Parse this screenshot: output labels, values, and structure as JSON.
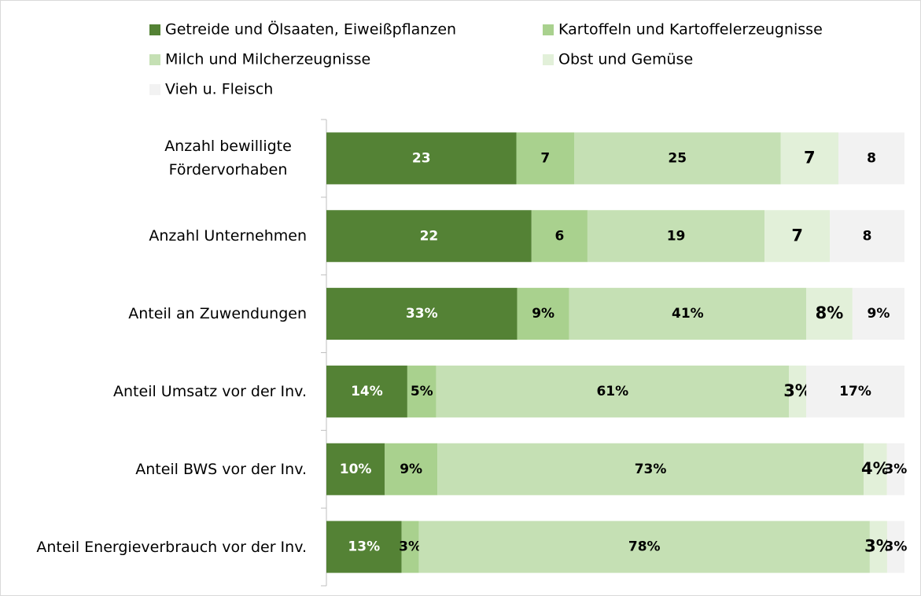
{
  "chart_data": {
    "type": "bar",
    "orientation": "horizontal",
    "stacking": "percent",
    "categories": [
      "Anzahl bewilligte Fördervorhaben",
      "Anzahl Unternehmen",
      "Anteil an Zuwendungen",
      "Anteil Umsatz vor der Inv.",
      "Anteil BWS vor der Inv.",
      "Anteil Energieverbrauch vor der Inv."
    ],
    "series": [
      {
        "name": "Getreide und Ölsaaten, Eiweißpflanzen",
        "color": "#548235",
        "values": [
          23,
          22,
          33,
          14,
          10,
          13
        ],
        "value_labels": [
          "23",
          "22",
          "33%",
          "14%",
          "10%",
          "13%"
        ]
      },
      {
        "name": "Kartoffeln und Kartoffelerzeugnisse",
        "color": "#a9d18e",
        "values": [
          7,
          6,
          9,
          5,
          9,
          3
        ],
        "value_labels": [
          "7",
          "6",
          "9%",
          "5%",
          "9%",
          "3%"
        ]
      },
      {
        "name": "Milch und Milcherzeugnisse",
        "color": "#c5e0b4",
        "values": [
          25,
          19,
          41,
          61,
          73,
          78
        ],
        "value_labels": [
          "25",
          "19",
          "41%",
          "61%",
          "73%",
          "78%"
        ]
      },
      {
        "name": "Obst und Gemüse",
        "color": "#e2f0d9",
        "values": [
          7,
          7,
          8,
          3,
          4,
          3
        ],
        "value_labels": [
          "7",
          "7",
          "8%",
          "3%",
          "4%",
          "3%"
        ]
      },
      {
        "name": "Vieh u. Fleisch",
        "color": "#f2f2f2",
        "values": [
          8,
          8,
          9,
          17,
          3,
          3
        ],
        "value_labels": [
          "8",
          "8",
          "9%",
          "17%",
          "3%",
          "3%"
        ]
      }
    ],
    "legend": "top"
  }
}
